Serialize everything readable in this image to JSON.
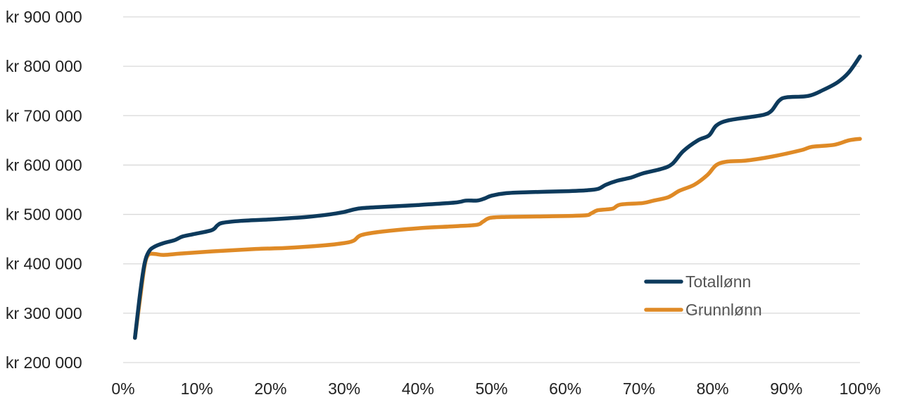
{
  "chart_data": {
    "type": "line",
    "title": "",
    "xlabel": "",
    "ylabel": "",
    "xlim": [
      0,
      100
    ],
    "ylim": [
      200000,
      900000
    ],
    "x_ticks": [
      0,
      10,
      20,
      30,
      40,
      50,
      60,
      70,
      80,
      90,
      100
    ],
    "x_tick_labels": [
      "0%",
      "10%",
      "20%",
      "30%",
      "40%",
      "50%",
      "60%",
      "70%",
      "80%",
      "90%",
      "100%"
    ],
    "y_ticks": [
      200000,
      300000,
      400000,
      500000,
      600000,
      700000,
      800000,
      900000
    ],
    "y_tick_labels": [
      "kr 200 000",
      "kr 300 000",
      "kr 400 000",
      "kr 500 000",
      "kr 600 000",
      "kr 700 000",
      "kr 800 000",
      "kr 900 000"
    ],
    "grid": true,
    "legend_position": "bottom-right",
    "series": [
      {
        "name": "Totallønn",
        "color": "#0d3a5c",
        "points": [
          [
            1.6,
            250000
          ],
          [
            2.3,
            340000
          ],
          [
            2.9,
            400000
          ],
          [
            3.5,
            425000
          ],
          [
            4.3,
            435000
          ],
          [
            5.5,
            442000
          ],
          [
            7,
            448000
          ],
          [
            8,
            455000
          ],
          [
            9.5,
            460000
          ],
          [
            12,
            468000
          ],
          [
            12.8,
            478000
          ],
          [
            13.5,
            483000
          ],
          [
            16,
            487000
          ],
          [
            20,
            490000
          ],
          [
            25,
            495000
          ],
          [
            28,
            500000
          ],
          [
            30,
            505000
          ],
          [
            32,
            512000
          ],
          [
            35,
            515000
          ],
          [
            40,
            519000
          ],
          [
            45,
            524000
          ],
          [
            46.5,
            528000
          ],
          [
            48,
            528000
          ],
          [
            49,
            532000
          ],
          [
            50,
            538000
          ],
          [
            52,
            543000
          ],
          [
            55,
            545000
          ],
          [
            60,
            547000
          ],
          [
            63,
            549000
          ],
          [
            64.5,
            552000
          ],
          [
            65.5,
            560000
          ],
          [
            67,
            568000
          ],
          [
            69,
            575000
          ],
          [
            70.5,
            583000
          ],
          [
            73,
            592000
          ],
          [
            74.5,
            602000
          ],
          [
            76,
            628000
          ],
          [
            78,
            650000
          ],
          [
            79.5,
            660000
          ],
          [
            80.5,
            680000
          ],
          [
            82,
            690000
          ],
          [
            85,
            697000
          ],
          [
            87,
            702000
          ],
          [
            88,
            710000
          ],
          [
            89,
            730000
          ],
          [
            90,
            737000
          ],
          [
            93,
            740000
          ],
          [
            95,
            752000
          ],
          [
            97,
            768000
          ],
          [
            98.5,
            788000
          ],
          [
            100,
            820000
          ]
        ]
      },
      {
        "name": "Grunnlønn",
        "color": "#df8a26",
        "points": [
          [
            1.6,
            250000
          ],
          [
            2.3,
            330000
          ],
          [
            2.9,
            395000
          ],
          [
            3.4,
            418000
          ],
          [
            4.3,
            420000
          ],
          [
            5.5,
            418000
          ],
          [
            8,
            421000
          ],
          [
            12,
            425000
          ],
          [
            18,
            430000
          ],
          [
            22,
            432000
          ],
          [
            27,
            437000
          ],
          [
            30,
            442000
          ],
          [
            31.3,
            447000
          ],
          [
            32.3,
            458000
          ],
          [
            35,
            465000
          ],
          [
            40,
            472000
          ],
          [
            45,
            476000
          ],
          [
            48,
            479000
          ],
          [
            48.8,
            485000
          ],
          [
            49.8,
            493000
          ],
          [
            52,
            495000
          ],
          [
            57,
            496000
          ],
          [
            62.5,
            498000
          ],
          [
            63.5,
            502000
          ],
          [
            64.3,
            508000
          ],
          [
            65.5,
            510000
          ],
          [
            66.5,
            512000
          ],
          [
            67.5,
            520000
          ],
          [
            70.5,
            523000
          ],
          [
            72,
            528000
          ],
          [
            74,
            535000
          ],
          [
            75.5,
            548000
          ],
          [
            77.5,
            560000
          ],
          [
            79.3,
            580000
          ],
          [
            80.5,
            600000
          ],
          [
            82,
            607000
          ],
          [
            84.5,
            609000
          ],
          [
            88,
            617000
          ],
          [
            92,
            630000
          ],
          [
            93.5,
            637000
          ],
          [
            96.5,
            641000
          ],
          [
            98.5,
            650000
          ],
          [
            100,
            653000
          ]
        ]
      }
    ]
  }
}
